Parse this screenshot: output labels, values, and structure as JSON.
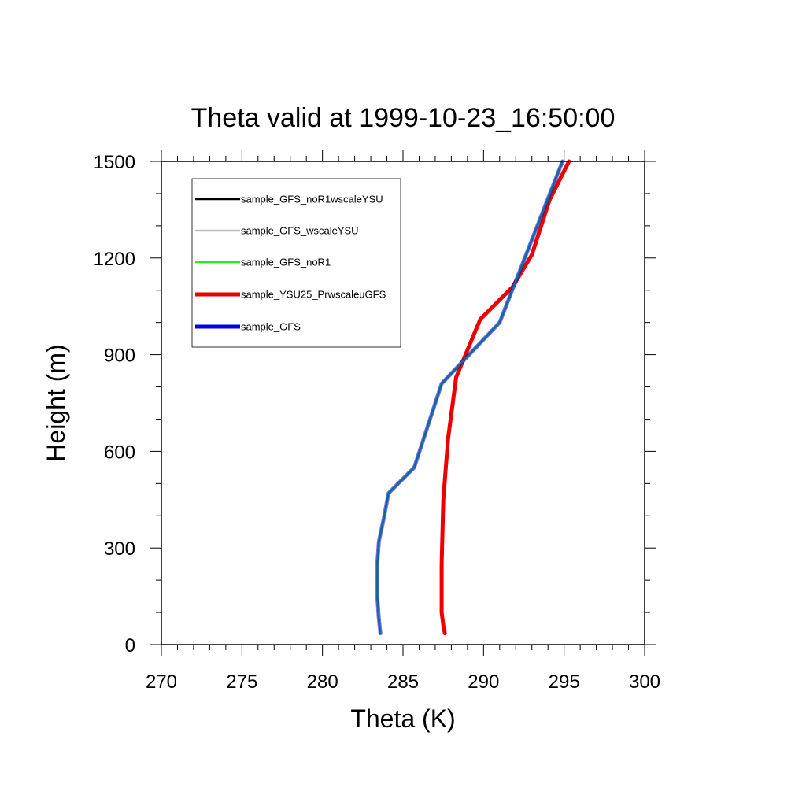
{
  "chart_data": {
    "type": "line",
    "title": "Theta valid at 1999-10-23_16:50:00",
    "xlabel": "Theta (K)",
    "ylabel": "Height (m)",
    "xlim": [
      270,
      300
    ],
    "ylim": [
      0,
      1500
    ],
    "xticks": [
      "270",
      "275",
      "280",
      "285",
      "290",
      "295",
      "300"
    ],
    "yticks": [
      "0",
      "300",
      "600",
      "900",
      "1200",
      "1500"
    ],
    "grid": false,
    "legend_position": "top-left",
    "series": [
      {
        "name": "sample_GFS_noR1wscaleYSU",
        "color": "#000000",
        "width": 2.5,
        "points": [
          [
            283.6,
            35
          ],
          [
            283.5,
            80
          ],
          [
            283.4,
            150
          ],
          [
            283.4,
            250
          ],
          [
            283.5,
            320
          ],
          [
            283.8,
            390
          ],
          [
            284.1,
            470
          ],
          [
            285.7,
            550
          ],
          [
            287.4,
            810
          ],
          [
            291.0,
            1000
          ],
          [
            294.9,
            1500
          ]
        ]
      },
      {
        "name": "sample_GFS_wscaleYSU",
        "color": "#bdbdbd",
        "width": 2.5,
        "points": [
          [
            283.6,
            35
          ],
          [
            283.5,
            80
          ],
          [
            283.4,
            150
          ],
          [
            283.4,
            250
          ],
          [
            283.5,
            320
          ],
          [
            283.8,
            390
          ],
          [
            284.1,
            470
          ],
          [
            285.7,
            550
          ],
          [
            287.4,
            810
          ],
          [
            291.0,
            1000
          ],
          [
            294.9,
            1500
          ]
        ]
      },
      {
        "name": "sample_GFS_noR1",
        "color": "#22ee22",
        "width": 2.5,
        "points": [
          [
            283.6,
            35
          ],
          [
            283.5,
            80
          ],
          [
            283.4,
            150
          ],
          [
            283.4,
            250
          ],
          [
            283.5,
            320
          ],
          [
            283.8,
            390
          ],
          [
            284.1,
            470
          ],
          [
            285.7,
            550
          ],
          [
            287.4,
            810
          ],
          [
            291.0,
            1000
          ],
          [
            294.9,
            1500
          ]
        ]
      },
      {
        "name": "sample_YSU25_PrwscaleuGFS",
        "color": "#ee0000",
        "width": 5,
        "points": [
          [
            287.6,
            35
          ],
          [
            287.5,
            60
          ],
          [
            287.4,
            100
          ],
          [
            287.4,
            250
          ],
          [
            287.5,
            450
          ],
          [
            287.8,
            640
          ],
          [
            288.3,
            830
          ],
          [
            289.8,
            1010
          ],
          [
            291.8,
            1110
          ],
          [
            293.0,
            1210
          ],
          [
            294.1,
            1380
          ],
          [
            295.3,
            1500
          ]
        ]
      },
      {
        "name": "sample_GFS",
        "color": "#0000ee",
        "width": 5,
        "points": [
          [
            283.6,
            35
          ],
          [
            283.5,
            80
          ],
          [
            283.4,
            150
          ],
          [
            283.4,
            250
          ],
          [
            283.5,
            320
          ],
          [
            283.8,
            390
          ],
          [
            284.1,
            470
          ],
          [
            285.7,
            550
          ],
          [
            287.4,
            810
          ],
          [
            291.0,
            1000
          ],
          [
            294.9,
            1500
          ]
        ]
      }
    ]
  }
}
